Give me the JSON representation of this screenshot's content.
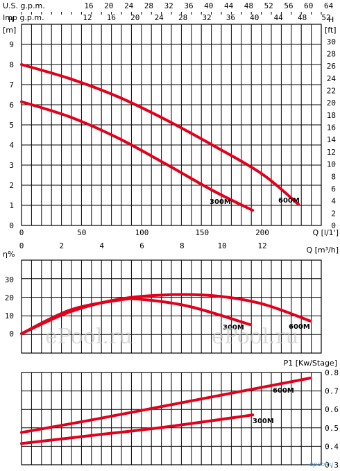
{
  "chart_data": [
    {
      "type": "line",
      "title": "",
      "top_axis_1": {
        "label": "U.S. g.p.m.",
        "ticks": [
          "16",
          "20",
          "24",
          "28",
          "32",
          "36",
          "40",
          "44",
          "48",
          "52",
          "56",
          "60",
          "64"
        ]
      },
      "top_axis_2": {
        "label": "Imp g.p.m.",
        "ticks": [
          "12",
          "16",
          "20",
          "24",
          "28",
          "32",
          "36",
          "40",
          "44",
          "48",
          "52"
        ]
      },
      "ylabel_left": "H",
      "ylabel_left_unit": "[m]",
      "ylabel_right": "H",
      "ylabel_right_unit": "[ft]",
      "yticks_left": [
        "0",
        "1",
        "2",
        "3",
        "4",
        "5",
        "6",
        "7",
        "8",
        "9"
      ],
      "yticks_right": [
        "0",
        "2",
        "4",
        "6",
        "8",
        "10",
        "12",
        "14",
        "16",
        "18",
        "20",
        "22",
        "24",
        "26",
        "28",
        "30"
      ],
      "xlabel": "Q [l/1']",
      "xticks": [
        "0",
        "50",
        "100",
        "150",
        "200"
      ],
      "xlabel2": "Q [m³/h]",
      "xticks2": [
        "0",
        "2",
        "4",
        "6",
        "8",
        "10",
        "12"
      ],
      "xlim": [
        0,
        240
      ],
      "ylim": [
        0,
        9
      ],
      "grid": true,
      "series": [
        {
          "name": "600M",
          "x": [
            0,
            40,
            80,
            120,
            160,
            200,
            230
          ],
          "y": [
            8.0,
            7.3,
            6.4,
            5.25,
            3.95,
            2.55,
            1.05
          ]
        },
        {
          "name": "300M",
          "x": [
            0,
            40,
            80,
            120,
            160,
            192
          ],
          "y": [
            6.15,
            5.4,
            4.35,
            3.05,
            1.7,
            0.75
          ]
        }
      ]
    },
    {
      "type": "line",
      "title": "",
      "ylabel": "η%",
      "yticks": [
        "0",
        "10",
        "20",
        "30"
      ],
      "xlim": [
        0,
        240
      ],
      "ylim": [
        -10,
        35
      ],
      "grid": true,
      "series": [
        {
          "name": "600M",
          "x": [
            0,
            40,
            80,
            120,
            160,
            200,
            240
          ],
          "y": [
            0,
            12,
            19,
            21.5,
            21,
            16.5,
            7
          ]
        },
        {
          "name": "300M",
          "x": [
            0,
            40,
            80,
            100,
            140,
            190
          ],
          "y": [
            0,
            13,
            18.5,
            19,
            15,
            5
          ]
        }
      ]
    },
    {
      "type": "line",
      "title": "",
      "ylabel": "P1 [Kw/Stage]",
      "yticks": [
        "0.3",
        "0.4",
        "0.5",
        "0.6",
        "0.7",
        "0.8"
      ],
      "xlim": [
        0,
        240
      ],
      "ylim": [
        0.3,
        0.8
      ],
      "grid": true,
      "series": [
        {
          "name": "600M",
          "x": [
            0,
            60,
            120,
            180,
            240
          ],
          "y": [
            0.475,
            0.545,
            0.62,
            0.695,
            0.77
          ]
        },
        {
          "name": "300M",
          "x": [
            0,
            60,
            120,
            192
          ],
          "y": [
            0.415,
            0.46,
            0.505,
            0.57
          ]
        }
      ]
    }
  ],
  "watermark": "ePool.ru",
  "logo": "epoolru"
}
